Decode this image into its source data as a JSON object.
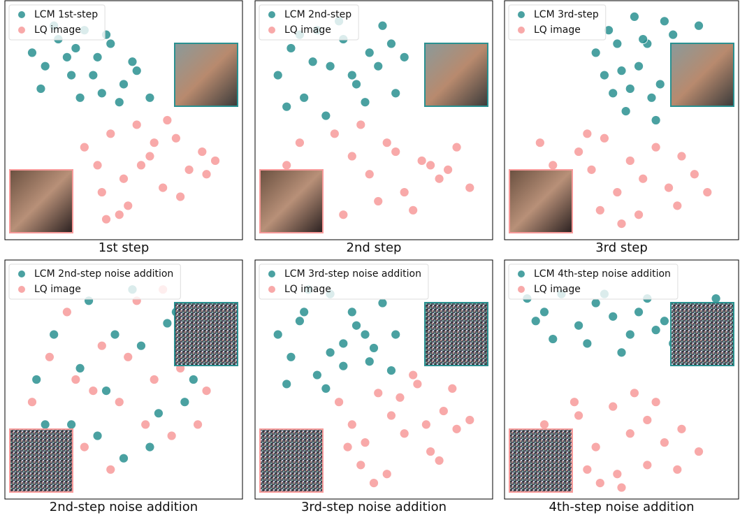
{
  "chart_data": [
    {
      "type": "scatter",
      "caption": "1st step",
      "xlim": [
        0,
        100
      ],
      "ylim": [
        0,
        100
      ],
      "legend": "upper left",
      "series": [
        {
          "name": "LCM 1st-step",
          "color": "#2a9090",
          "x": [
            8,
            14,
            20,
            26,
            32,
            38,
            44,
            50,
            56,
            62,
            12,
            18,
            24,
            30,
            36,
            42,
            48,
            54,
            28,
            40
          ],
          "y": [
            80,
            74,
            86,
            70,
            90,
            78,
            84,
            66,
            72,
            60,
            64,
            92,
            78,
            60,
            70,
            88,
            58,
            76,
            82,
            62
          ]
        },
        {
          "name": "LQ image",
          "color": "#f79a9a",
          "x": [
            32,
            38,
            44,
            50,
            56,
            62,
            68,
            74,
            80,
            86,
            92,
            40,
            52,
            64,
            76,
            88,
            58,
            70,
            42,
            48
          ],
          "y": [
            38,
            30,
            44,
            24,
            48,
            34,
            20,
            42,
            28,
            36,
            32,
            18,
            12,
            40,
            16,
            26,
            30,
            50,
            6,
            8
          ]
        }
      ]
    },
    {
      "type": "scatter",
      "caption": "2nd step",
      "xlim": [
        0,
        100
      ],
      "ylim": [
        0,
        100
      ],
      "legend": "upper left",
      "series": [
        {
          "name": "LCM 2nd-step",
          "color": "#2a9090",
          "x": [
            6,
            12,
            18,
            24,
            30,
            36,
            42,
            48,
            54,
            60,
            10,
            22,
            34,
            46,
            58,
            16,
            28,
            40,
            52,
            64
          ],
          "y": [
            70,
            82,
            60,
            90,
            74,
            86,
            66,
            80,
            92,
            62,
            56,
            76,
            94,
            58,
            84,
            88,
            52,
            70,
            74,
            78
          ]
        },
        {
          "name": "LQ image",
          "color": "#f79a9a",
          "x": [
            10,
            16,
            24,
            32,
            40,
            48,
            56,
            64,
            72,
            80,
            88,
            94,
            20,
            36,
            52,
            68,
            84,
            44,
            60,
            76
          ],
          "y": [
            30,
            40,
            22,
            44,
            34,
            26,
            40,
            18,
            32,
            24,
            38,
            20,
            12,
            8,
            14,
            10,
            28,
            48,
            36,
            30
          ]
        }
      ]
    },
    {
      "type": "scatter",
      "caption": "3rd step",
      "xlim": [
        0,
        100
      ],
      "ylim": [
        0,
        100
      ],
      "legend": "upper left",
      "series": [
        {
          "name": "LCM 3rd-step",
          "color": "#2a9090",
          "x": [
            38,
            44,
            50,
            56,
            62,
            68,
            74,
            80,
            86,
            46,
            52,
            58,
            64,
            70,
            76,
            42,
            60,
            66,
            54,
            48
          ],
          "y": [
            80,
            90,
            72,
            96,
            84,
            66,
            88,
            78,
            92,
            62,
            54,
            74,
            60,
            94,
            70,
            70,
            86,
            50,
            64,
            84
          ]
        },
        {
          "name": "LQ image",
          "color": "#f79a9a",
          "x": [
            12,
            18,
            24,
            30,
            36,
            42,
            48,
            54,
            60,
            66,
            72,
            78,
            84,
            90,
            20,
            40,
            58,
            76,
            34,
            50
          ],
          "y": [
            40,
            30,
            22,
            36,
            28,
            42,
            18,
            32,
            24,
            38,
            20,
            34,
            26,
            18,
            14,
            10,
            8,
            12,
            44,
            4
          ]
        }
      ]
    },
    {
      "type": "scatter",
      "caption": "2nd-step noise addition",
      "xlim": [
        0,
        100
      ],
      "ylim": [
        0,
        100
      ],
      "legend": "upper left",
      "series": [
        {
          "name": "LCM 2nd-step noise addition",
          "color": "#2a9090",
          "x": [
            10,
            18,
            26,
            34,
            42,
            50,
            58,
            66,
            74,
            82,
            90,
            14,
            30,
            46,
            62,
            78,
            22,
            38,
            54,
            70
          ],
          "y": [
            50,
            70,
            30,
            85,
            45,
            15,
            65,
            35,
            80,
            50,
            60,
            30,
            55,
            70,
            20,
            40,
            12,
            25,
            90,
            75
          ]
        },
        {
          "name": "LQ image",
          "color": "#f79a9a",
          "x": [
            8,
            16,
            24,
            32,
            40,
            48,
            56,
            64,
            72,
            80,
            88,
            20,
            36,
            52,
            68,
            84,
            28,
            44,
            60,
            76
          ],
          "y": [
            40,
            60,
            80,
            20,
            65,
            40,
            85,
            50,
            25,
            70,
            45,
            25,
            45,
            60,
            90,
            30,
            50,
            10,
            30,
            55
          ]
        }
      ]
    },
    {
      "type": "scatter",
      "caption": "3rd-step noise addition",
      "xlim": [
        0,
        100
      ],
      "ylim": [
        0,
        100
      ],
      "legend": "upper left",
      "series": [
        {
          "name": "LCM 3rd-step noise addition",
          "color": "#2a9090",
          "x": [
            6,
            12,
            18,
            24,
            30,
            36,
            42,
            48,
            54,
            60,
            10,
            20,
            30,
            40,
            50,
            16,
            28,
            46,
            58,
            36
          ],
          "y": [
            70,
            60,
            80,
            52,
            88,
            66,
            74,
            58,
            84,
            70,
            48,
            90,
            62,
            80,
            64,
            76,
            46,
            70,
            54,
            56
          ]
        },
        {
          "name": "LQ image",
          "color": "#f79a9a",
          "x": [
            34,
            40,
            46,
            52,
            58,
            64,
            70,
            76,
            82,
            88,
            94,
            44,
            56,
            68,
            80,
            50,
            62,
            74,
            38,
            86
          ],
          "y": [
            40,
            30,
            22,
            44,
            34,
            26,
            48,
            18,
            36,
            28,
            32,
            12,
            8,
            52,
            14,
            4,
            42,
            30,
            20,
            46
          ]
        }
      ]
    },
    {
      "type": "scatter",
      "caption": "4th-step noise addition",
      "xlim": [
        0,
        100
      ],
      "ylim": [
        0,
        100
      ],
      "legend": "upper left",
      "series": [
        {
          "name": "LCM 4th-step noise addition",
          "color": "#2a9090",
          "x": [
            6,
            14,
            22,
            30,
            38,
            46,
            54,
            62,
            70,
            78,
            86,
            94,
            18,
            34,
            50,
            66,
            10,
            42,
            58,
            74
          ],
          "y": [
            86,
            80,
            88,
            74,
            84,
            78,
            70,
            86,
            76,
            82,
            80,
            86,
            68,
            66,
            62,
            72,
            76,
            88,
            80,
            66
          ]
        },
        {
          "name": "LQ image",
          "color": "#f79a9a",
          "x": [
            14,
            22,
            30,
            38,
            46,
            54,
            62,
            70,
            78,
            86,
            20,
            34,
            48,
            62,
            76,
            40,
            56,
            28,
            66,
            50
          ],
          "y": [
            30,
            24,
            34,
            20,
            38,
            26,
            32,
            22,
            28,
            18,
            14,
            10,
            8,
            12,
            10,
            4,
            44,
            40,
            40,
            2
          ]
        }
      ]
    }
  ]
}
